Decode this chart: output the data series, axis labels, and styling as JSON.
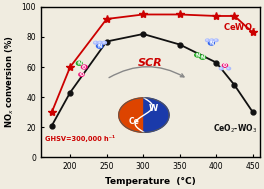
{
  "title": "",
  "xlabel": "Temperature  (°C)",
  "ylabel": "NO$_x$ conversion (%)",
  "xlim": [
    160,
    460
  ],
  "ylim": [
    0,
    100
  ],
  "xticks": [
    200,
    250,
    300,
    350,
    400,
    450
  ],
  "yticks": [
    0,
    20,
    40,
    60,
    80,
    100
  ],
  "cewo_x": [
    175,
    200,
    250,
    300,
    350,
    400,
    425,
    450
  ],
  "cewo_y": [
    30,
    60,
    92,
    95,
    95,
    94,
    94,
    83
  ],
  "ceo2wo3_x": [
    175,
    200,
    250,
    300,
    350,
    400,
    425,
    450
  ],
  "ceo2wo3_y": [
    21,
    43,
    77,
    82,
    75,
    63,
    48,
    30
  ],
  "cewo_color": "#cc0000",
  "ceo2wo3_color": "#111111",
  "cewo_label": "CeWO$_x$",
  "ceo2wo3_label": "CeO$_2$-WO$_3$",
  "ghsv_text": "GHSV=300,000 h⁻¹",
  "ghsv_color": "#cc0000",
  "background_color": "#f0ece0",
  "scr_color": "#cc0000",
  "fig_width": 2.64,
  "fig_height": 1.89,
  "dpi": 100
}
